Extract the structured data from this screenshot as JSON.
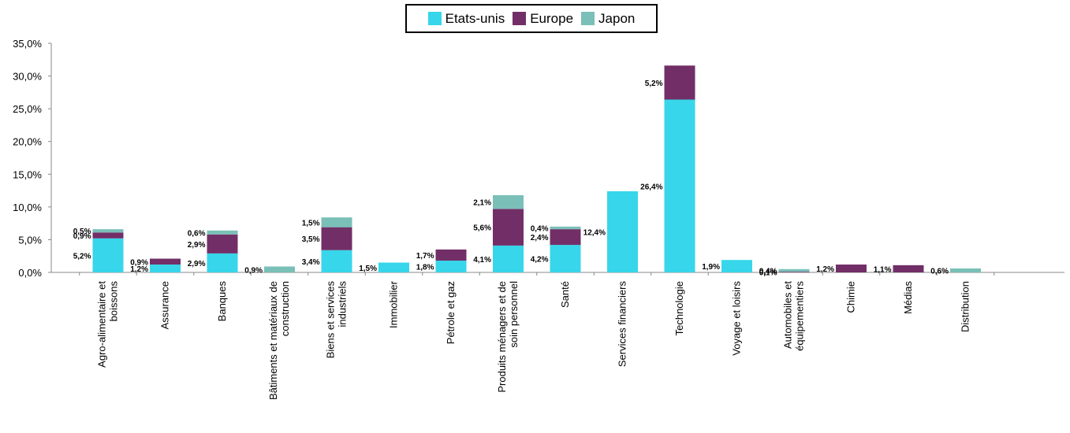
{
  "chart_data": {
    "type": "bar",
    "stacked": true,
    "categories": [
      [
        "Agro-alimentaire et",
        "boissons"
      ],
      [
        "Assurance"
      ],
      [
        "Banques"
      ],
      [
        "Bâtiments et matériaux de",
        "construction"
      ],
      [
        "Biens et services",
        "industriels"
      ],
      [
        "Immobilier"
      ],
      [
        "Pétrole et gaz"
      ],
      [
        "Produits ménagers et de",
        "soin personnel"
      ],
      [
        "Santé"
      ],
      [
        "Services financiers"
      ],
      [
        "Technologie"
      ],
      [
        "Voyage et loisirs"
      ],
      [
        "Automobiles et",
        "équipementiers"
      ],
      [
        "Chimie"
      ],
      [
        "Médias"
      ],
      [
        "Distribution"
      ]
    ],
    "series": [
      {
        "name": "Etats-unis",
        "color": "#37D6EA",
        "values": [
          5.2,
          1.2,
          2.9,
          0,
          3.4,
          1.5,
          1.8,
          4.1,
          4.2,
          12.4,
          26.4,
          1.9,
          0,
          0,
          0,
          0
        ],
        "labels": [
          "5,2%",
          "1,2%",
          "2,9%",
          "",
          "3,4%",
          "1,5%",
          "1,8%",
          "4,1%",
          "4,2%",
          "12,4%",
          "26,4%",
          "1,9%",
          "",
          "",
          "",
          ""
        ]
      },
      {
        "name": "Europe",
        "color": "#722F67",
        "values": [
          0.9,
          0.9,
          2.9,
          0,
          3.5,
          0,
          1.7,
          5.6,
          2.4,
          0,
          5.2,
          0,
          0.1,
          1.2,
          1.1,
          0
        ],
        "labels": [
          "0,9%",
          "0,9%",
          "2,9%",
          "",
          "3,5%",
          "",
          "1,7%",
          "5,6%",
          "2,4%",
          "",
          "5,2%",
          "",
          "0,1%",
          "1,2%",
          "1,1%",
          ""
        ]
      },
      {
        "name": "Japon",
        "color": "#7ABFB8",
        "values": [
          0.5,
          0,
          0.6,
          0.9,
          1.5,
          0,
          0,
          2.1,
          0.4,
          0,
          0,
          0,
          0.4,
          0,
          0,
          0.6
        ],
        "labels": [
          "0,5%",
          "",
          "0,6%",
          "0,9%",
          "1,5%",
          "",
          "",
          "2,1%",
          "0,4%",
          "",
          "",
          "",
          "0,4%",
          "",
          "",
          "0,6%"
        ]
      }
    ],
    "ylim": [
      0,
      35
    ],
    "yticks": [
      "0,0%",
      "5,0%",
      "10,0%",
      "15,0%",
      "20,0%",
      "25,0%",
      "30,0%",
      "35,0%"
    ],
    "grid": false,
    "legend_position": "top-center"
  }
}
